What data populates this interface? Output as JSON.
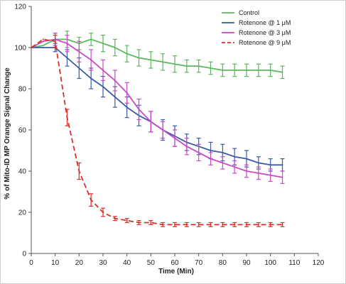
{
  "chart_data": {
    "type": "line",
    "title": "",
    "xlabel": "Time (Min)",
    "ylabel": "% of Mito-ID MP Orange Signal Change",
    "xlim": [
      0,
      120
    ],
    "ylim": [
      0,
      120
    ],
    "xticks": [
      "0",
      "10",
      "20",
      "30",
      "40",
      "50",
      "60",
      "70",
      "80",
      "90",
      "100",
      "110",
      "120"
    ],
    "yticks": [
      "0",
      "20",
      "40",
      "60",
      "80",
      "100",
      "120"
    ],
    "legend_position": "top-right",
    "series": [
      {
        "name": "Control",
        "color": "#5cb85c",
        "dash": "none",
        "x": [
          0,
          5,
          10,
          15,
          20,
          25,
          30,
          35,
          40,
          45,
          50,
          55,
          60,
          65,
          70,
          75,
          80,
          85,
          90,
          95,
          100,
          105
        ],
        "y": [
          100,
          101,
          104,
          104,
          102,
          104,
          102,
          100,
          97,
          95,
          94,
          93,
          92,
          91,
          91,
          90,
          89,
          89,
          89,
          89,
          89,
          88
        ],
        "err": [
          0,
          0,
          3,
          4,
          3,
          3,
          4,
          4,
          4,
          4,
          4,
          4,
          4,
          3,
          3,
          3,
          3,
          3,
          3,
          3,
          3,
          3
        ]
      },
      {
        "name": "Rotenone @ 1 μM",
        "color": "#3a5aa8",
        "dash": "none",
        "x": [
          0,
          5,
          10,
          15,
          20,
          25,
          30,
          35,
          40,
          45,
          50,
          55,
          60,
          65,
          70,
          75,
          80,
          85,
          90,
          95,
          100,
          105
        ],
        "y": [
          100,
          100,
          100,
          95,
          90,
          85,
          81,
          76,
          71,
          67,
          64,
          60,
          57,
          54,
          52,
          50,
          49,
          47,
          46,
          44,
          43,
          43
        ],
        "err": [
          0,
          0,
          2,
          4,
          5,
          5,
          5,
          5,
          5,
          5,
          5,
          5,
          5,
          4,
          4,
          4,
          4,
          4,
          4,
          3,
          3,
          3
        ]
      },
      {
        "name": "Rotenone @ 3 μM",
        "color": "#c74ac7",
        "dash": "none",
        "x": [
          0,
          5,
          10,
          15,
          20,
          25,
          30,
          35,
          40,
          45,
          50,
          55,
          60,
          65,
          70,
          75,
          80,
          85,
          90,
          95,
          100,
          105
        ],
        "y": [
          100,
          103,
          104,
          102,
          98,
          94,
          89,
          84,
          78,
          70,
          64,
          60,
          56,
          52,
          49,
          46,
          44,
          42,
          40,
          39,
          38,
          37
        ],
        "err": [
          0,
          0,
          3,
          4,
          5,
          5,
          5,
          5,
          5,
          5,
          5,
          4,
          4,
          4,
          4,
          3,
          3,
          3,
          3,
          3,
          3,
          3
        ]
      },
      {
        "name": "Rotenone @ 9 μM",
        "color": "#d9302a",
        "dash": "7,4",
        "x": [
          0,
          5,
          10,
          15,
          20,
          25,
          30,
          35,
          40,
          45,
          50,
          55,
          60,
          65,
          70,
          75,
          80,
          85,
          90,
          95,
          100,
          105
        ],
        "y": [
          100,
          104,
          103,
          66,
          40,
          26,
          20,
          17,
          16,
          15,
          15,
          14,
          14,
          14,
          14,
          14,
          14,
          14,
          14,
          14,
          14,
          14
        ],
        "err": [
          0,
          0,
          3,
          4,
          4,
          3,
          2,
          1,
          1,
          1,
          1,
          1,
          1,
          1,
          1,
          1,
          1,
          1,
          1,
          1,
          1,
          1
        ]
      }
    ]
  }
}
